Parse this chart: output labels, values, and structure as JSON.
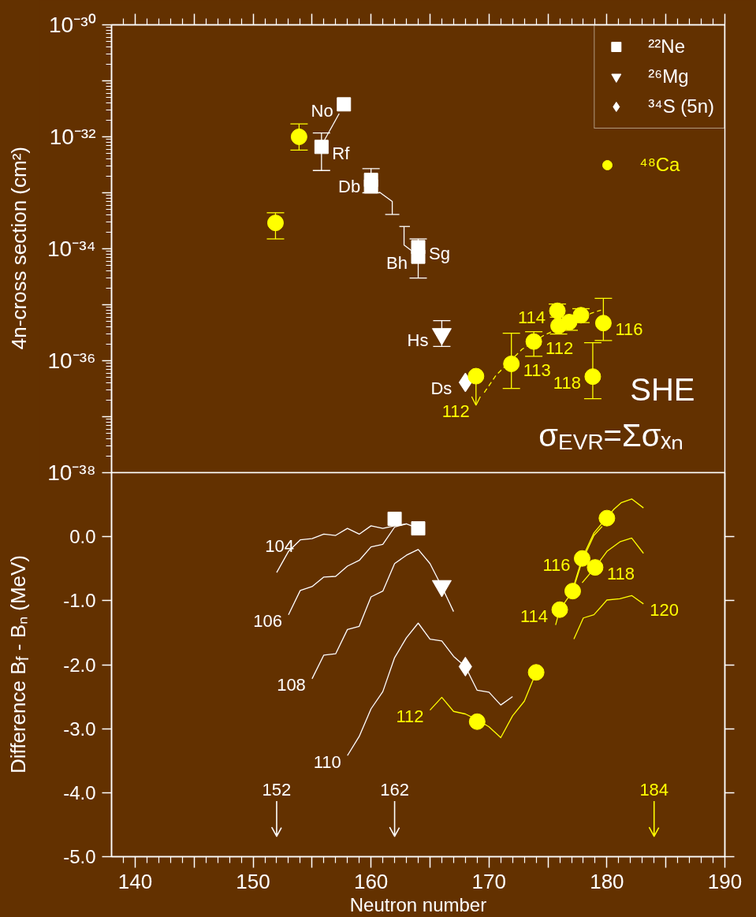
{
  "chart_data": [
    {
      "type": "scatter",
      "ylabel": "4n-cross section (cm²)",
      "xlim": [
        138,
        190
      ],
      "ylim": [
        1e-38,
        1e-30
      ],
      "log": true,
      "tick_labels": "y",
      "legend": "top right",
      "xticks": [
        140,
        {
          "value": 145,
          "label": null
        },
        150,
        {
          "value": 155,
          "label": null
        },
        160,
        {
          "value": 165,
          "label": null
        },
        170,
        {
          "value": 175,
          "label": null
        },
        180,
        {
          "value": 185,
          "label": null
        },
        190
      ],
      "yticks": [
        {
          "value": 1e-38,
          "label": "10⁻³⁸"
        },
        {
          "value": 1e-37,
          "label": null
        },
        {
          "value": 1e-36,
          "label": "10⁻³⁶"
        },
        {
          "value": 1e-35,
          "label": null
        },
        {
          "value": 1e-34,
          "label": "10⁻³⁴"
        },
        {
          "value": 1e-33,
          "label": null
        },
        {
          "value": 1e-32,
          "label": "10⁻³²"
        },
        {
          "value": 1e-31,
          "label": null
        },
        {
          "value": 1e-30,
          "label": "10⁻³⁰"
        }
      ],
      "series": [
        {
          "type": "line",
          "color": "#ffffff",
          "x": [
            157.3,
            156.05
          ],
          "values": [
            2.6e-32,
            8.7e-33
          ]
        },
        {
          "type": "line",
          "color": "#ffffff",
          "x": [
            160.7,
            161.8,
            161.8
          ],
          "values": [
            1.03e-33,
            7e-34,
            4.1e-34
          ]
        },
        {
          "type": "line",
          "color": "#ffffff",
          "x": [
            161.2,
            162.4
          ],
          "values": [
            4.1e-34,
            4.1e-34
          ]
        },
        {
          "type": "line",
          "color": "#ffffff",
          "x": [
            162.8,
            162.8,
            163.4
          ],
          "values": [
            2.5e-34,
            1.17e-34,
            9.4e-35
          ]
        },
        {
          "type": "line",
          "color": "#ffffff",
          "x": [
            162.4,
            163.3
          ],
          "values": [
            2.5e-34,
            2.5e-34
          ]
        },
        {
          "type": "line",
          "color": "#ffff00",
          "line_style": "dashed",
          "x": [
            169.6,
            170.6,
            172.8,
            174.6,
            178.7,
            179.5
          ],
          "values": [
            2.7e-37,
            5.5e-37,
            1.6e-36,
            2.8e-36,
            7.1e-36,
            8e-36
          ]
        },
        {
          "name": "²²Ne",
          "marker": "square",
          "color": "#ffffff",
          "x": [
            157.7,
            155.8,
            160.0,
            160.0,
            164.0,
            164.0
          ],
          "values": [
            3.8e-32,
            6.6e-33,
            1.7e-33,
            1.3e-33,
            1.07e-34,
            7.2e-35
          ],
          "errors": [
            null,
            [
              2.5e-33,
              1.17e-32
            ],
            null,
            [
              1e-33,
              2.7e-33
            ],
            null,
            [
              3e-35,
              1.5e-34
            ]
          ]
        },
        {
          "name": "²⁶Mg",
          "marker": "triangle",
          "color": "#ffffff",
          "x": [
            166
          ],
          "values": [
            3e-36
          ],
          "errors": [
            [
              1.8e-36,
              5.2e-36
            ]
          ]
        },
        {
          "name": "³⁴S (5n)",
          "marker": "diamond",
          "color": "#ffffff",
          "x": [
            168
          ],
          "values": [
            4.1e-37
          ]
        },
        {
          "name": "⁴⁸Ca",
          "marker": "circle",
          "color": "#ffff00",
          "x": [
            151.9,
            153.9,
            168.9,
            171.9,
            173.8,
            175.8,
            175.9,
            176.8,
            177.8,
            179.7,
            178.8
          ],
          "values": [
            2.9e-34,
            1e-32,
            5.3e-37,
            8.8e-37,
            2.2e-36,
            7.8e-36,
            4.2e-36,
            4.9e-36,
            6.5e-36,
            4.7e-36,
            5.2e-37
          ],
          "errors": [
            [
              1.5e-34,
              4.4e-34
            ],
            [
              5.8e-33,
              1.7e-32
            ],
            [
              1.6e-37,
              5.3e-37
            ],
            [
              3.2e-37,
              3.1e-36
            ],
            [
              1.2e-36,
              3.3e-36
            ],
            [
              7.8e-36,
              1.03e-35
            ],
            [
              3e-36,
              6e-36
            ],
            [
              3.5e-36,
              6e-36
            ],
            [
              4.8e-36,
              8.5e-36
            ],
            [
              2.3e-36,
              1.3e-35
            ],
            [
              2.1e-37,
              2.1e-36
            ]
          ]
        }
      ],
      "annotations": [
        {
          "text": "No",
          "x": 157.7,
          "y": 3.8e-32
        },
        {
          "text": "Rf",
          "x": 155.8,
          "y": 6.6e-33
        },
        {
          "text": "Db",
          "x": 160.0,
          "y": 1.7e-33
        },
        {
          "text": "Sg",
          "x": 164.0,
          "y": 1.07e-34
        },
        {
          "text": "Bh",
          "x": 164.0,
          "y": 7.2e-35
        },
        {
          "text": "Hs",
          "x": 166,
          "y": 3e-36
        },
        {
          "text": "Ds",
          "x": 168,
          "y": 4.1e-37
        },
        {
          "text": "112",
          "x": 168.9,
          "y": 1.6e-37
        },
        {
          "text": "113",
          "x": 171.9,
          "y": 8.8e-37
        },
        {
          "text": "112",
          "x": 173.8,
          "y": 2.2e-36
        },
        {
          "text": "114",
          "x": 175.8,
          "y": 7.8e-36
        },
        {
          "text": "116",
          "x": 179.7,
          "y": 4.7e-36
        },
        {
          "text": "118",
          "x": 178.8,
          "y": 5.2e-37
        },
        "SHE",
        "σ$_{EVR}$=Σσₓₙ"
      ]
    },
    {
      "type": "line",
      "xlabel": "Neutron number",
      "ylabel": "Difference B$_{f}$ - Bₙ (MeV)",
      "xlim": [
        138,
        190
      ],
      "ylim": [
        -5,
        1
      ],
      "xticks": [
        140,
        {
          "value": 145,
          "label": null
        },
        150,
        {
          "value": 155,
          "label": null
        },
        160,
        {
          "value": 165,
          "label": null
        },
        170,
        {
          "value": 175,
          "label": null
        },
        180,
        {
          "value": 185,
          "label": null
        },
        190
      ],
      "yticks": [
        {
          "value": -5,
          "label": "-5.0"
        },
        {
          "value": -4,
          "label": "-4.0"
        },
        {
          "value": -3,
          "label": "-3.0"
        },
        {
          "value": -2,
          "label": "-2.0"
        },
        {
          "value": -1,
          "label": "-1.0"
        },
        {
          "value": 0,
          "label": "0.0"
        }
      ],
      "series": [
        {
          "color": "#ffffff",
          "x": [
            152,
            153,
            154,
            155,
            156,
            157,
            158,
            159,
            160,
            161,
            162,
            163
          ],
          "values": [
            -0.56,
            -0.23,
            -0.05,
            -0.03,
            0.04,
            0.02,
            0.13,
            0.04,
            0.17,
            0.13,
            0.17,
            0.2
          ]
        },
        {
          "color": "#ffffff",
          "x": [
            153,
            154,
            155,
            156,
            157,
            158,
            159,
            160,
            161,
            162,
            163,
            164
          ],
          "values": [
            -1.22,
            -0.84,
            -0.78,
            -0.63,
            -0.62,
            -0.46,
            -0.37,
            -0.16,
            -0.12,
            0.15,
            0.2,
            0.13
          ]
        },
        {
          "color": "#ffffff",
          "x": [
            155,
            156,
            157,
            158,
            159,
            160,
            161,
            162,
            163,
            164,
            165,
            166,
            167
          ],
          "values": [
            -2.22,
            -1.85,
            -1.83,
            -1.45,
            -1.4,
            -0.94,
            -0.85,
            -0.42,
            -0.29,
            -0.2,
            -0.42,
            -0.78,
            -1.17
          ]
        },
        {
          "color": "#ffffff",
          "x": [
            158,
            159,
            160,
            161,
            162,
            163,
            164,
            165,
            166,
            167,
            168,
            169,
            170,
            171,
            172
          ],
          "values": [
            -3.42,
            -3.12,
            -2.69,
            -2.42,
            -1.89,
            -1.58,
            -1.35,
            -1.6,
            -1.63,
            -1.87,
            -2.03,
            -2.4,
            -2.43,
            -2.63,
            -2.5
          ]
        },
        {
          "color": "#ffff00",
          "x": [
            165,
            166,
            167,
            168,
            169,
            170,
            171,
            172,
            173,
            174
          ],
          "values": [
            -2.71,
            -2.51,
            -2.73,
            -2.77,
            -2.86,
            -2.97,
            -3.14,
            -2.8,
            -2.57,
            -2.12
          ]
        },
        {
          "color": "#ffff00",
          "x": [
            175.65,
            176.0,
            177.1,
            177.9,
            178.9,
            179.6
          ],
          "values": [
            -1.38,
            -1.14,
            -0.85,
            -0.38,
            0.02,
            0.16
          ]
        },
        {
          "color": "#ffff00",
          "x": [
            177.2,
            177.9,
            178.9,
            179.95,
            180.6,
            181.2,
            182.1,
            183.1
          ],
          "values": [
            -0.76,
            -0.34,
            0.06,
            0.29,
            0.43,
            0.53,
            0.59,
            0.45
          ]
        },
        {
          "color": "#ffff00",
          "x": [
            177.9,
            179.0,
            180.0,
            181.1,
            182.1,
            183.1
          ],
          "values": [
            -0.72,
            -0.48,
            -0.23,
            -0.08,
            -0.02,
            -0.26
          ]
        },
        {
          "color": "#ffff00",
          "x": [
            177.2,
            178.0,
            178.9,
            180.0,
            181.1,
            182.1,
            183.1
          ],
          "values": [
            -1.6,
            -1.27,
            -1.22,
            -0.99,
            -0.97,
            -0.92,
            -1.05
          ]
        },
        {
          "type": "scatter",
          "marker": "square",
          "color": "#ffffff",
          "x": [
            162,
            164
          ],
          "values": [
            0.28,
            0.13
          ]
        },
        {
          "type": "scatter",
          "marker": "triangle",
          "color": "#ffffff",
          "x": [
            166
          ],
          "values": [
            -0.77
          ]
        },
        {
          "type": "scatter",
          "marker": "diamond",
          "color": "#ffffff",
          "x": [
            168
          ],
          "values": [
            -2.03
          ]
        },
        {
          "type": "scatter",
          "marker": "circle",
          "color": "#ffff00",
          "x": [
            169,
            174,
            176,
            177.1,
            177.9,
            179,
            180
          ],
          "values": [
            -2.89,
            -2.12,
            -1.14,
            -0.85,
            -0.34,
            -0.48,
            0.29
          ]
        }
      ],
      "annotations": [
        {
          "text": "104",
          "x": 154,
          "y": -0.05
        },
        {
          "text": "106",
          "x": 153,
          "y": -1.22
        },
        {
          "text": "108",
          "x": 155,
          "y": -2.22
        },
        {
          "text": "110",
          "x": 158,
          "y": -3.42
        },
        {
          "text": "112",
          "x": 165,
          "y": -2.71
        },
        {
          "text": "114",
          "x": 176.0,
          "y": -1.14
        },
        {
          "text": "116",
          "x": 177.9,
          "y": -0.34
        },
        {
          "text": "118",
          "x": 179.0,
          "y": -0.48
        },
        {
          "text": "120",
          "x": 183.1,
          "y": -1.05
        }
      ],
      "ref_lines": [
        {
          "axis": "x",
          "value": 152,
          "label": "152",
          "color": "#ffffff"
        },
        {
          "axis": "x",
          "value": 162,
          "label": "162",
          "color": "#ffffff"
        },
        {
          "axis": "x",
          "value": 184,
          "label": "184",
          "color": "#ffff00"
        }
      ]
    }
  ]
}
